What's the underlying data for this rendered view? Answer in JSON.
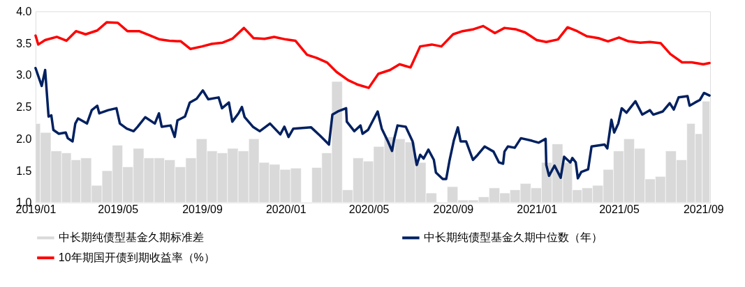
{
  "chart_data": {
    "type": "line",
    "xlim": [
      "2019-01-01",
      "2021-09-11"
    ],
    "xticks": [
      {
        "value": "2019-01-01",
        "label": "2019/01"
      },
      {
        "value": "2019-05-01",
        "label": "2019/05"
      },
      {
        "value": "2019-09-01",
        "label": "2019/09"
      },
      {
        "value": "2020-01-01",
        "label": "2020/01"
      },
      {
        "value": "2020-05-01",
        "label": "2020/05"
      },
      {
        "value": "2020-09-01",
        "label": "2020/09"
      },
      {
        "value": "2021-01-01",
        "label": "2021/01"
      },
      {
        "value": "2021-05-01",
        "label": "2021/05"
      },
      {
        "value": "2021-09-01",
        "label": "2021/09"
      }
    ],
    "ylim": [
      1.0,
      4.0
    ],
    "yticks": [
      {
        "value": 1.0,
        "label": "1.0"
      },
      {
        "value": 1.5,
        "label": "1.5"
      },
      {
        "value": 2.0,
        "label": "2.0"
      },
      {
        "value": 2.5,
        "label": "2.5"
      },
      {
        "value": 3.0,
        "label": "3.0"
      },
      {
        "value": 3.5,
        "label": "3.5"
      },
      {
        "value": 4.0,
        "label": "4.0"
      }
    ],
    "grid": false,
    "legend": "bottom",
    "series": [
      {
        "name": "中长期纯债型基金久期标准差",
        "type": "bar",
        "color": "#d9d9d9",
        "x": [
          "2019-01-01",
          "2019-01-15",
          "2019-02-01",
          "2019-02-15",
          "2019-03-01",
          "2019-03-15",
          "2019-04-01",
          "2019-04-15",
          "2019-05-01",
          "2019-05-15",
          "2019-06-01",
          "2019-06-15",
          "2019-07-01",
          "2019-07-15",
          "2019-08-01",
          "2019-08-15",
          "2019-09-01",
          "2019-09-15",
          "2019-10-01",
          "2019-10-15",
          "2019-11-01",
          "2019-11-15",
          "2019-12-01",
          "2019-12-15",
          "2020-01-01",
          "2020-01-15",
          "2020-02-01",
          "2020-02-15",
          "2020-03-01",
          "2020-03-15",
          "2020-04-01",
          "2020-04-15",
          "2020-05-01",
          "2020-05-15",
          "2020-06-01",
          "2020-06-15",
          "2020-07-01",
          "2020-07-15",
          "2020-08-01",
          "2020-08-15",
          "2020-09-01",
          "2020-09-15",
          "2020-10-01",
          "2020-10-15",
          "2020-11-01",
          "2020-11-15",
          "2020-12-01",
          "2020-12-15",
          "2021-01-01",
          "2021-01-15",
          "2021-02-01",
          "2021-02-15",
          "2021-03-01",
          "2021-03-15",
          "2021-04-01",
          "2021-04-15",
          "2021-05-01",
          "2021-05-15",
          "2021-06-01",
          "2021-06-15",
          "2021-07-01",
          "2021-07-15",
          "2021-08-01",
          "2021-08-15",
          "2021-08-25",
          "2021-09-05"
        ],
        "values": [
          2.24,
          2.1,
          1.81,
          1.78,
          1.67,
          1.7,
          1.27,
          1.5,
          1.9,
          1.56,
          1.85,
          1.7,
          1.7,
          1.67,
          1.56,
          1.7,
          2.0,
          1.81,
          1.78,
          1.85,
          1.81,
          2.0,
          1.63,
          1.6,
          1.52,
          1.54,
          null,
          1.55,
          1.78,
          2.9,
          1.2,
          1.7,
          1.65,
          1.88,
          2.03,
          2.0,
          1.95,
          1.63,
          1.15,
          null,
          1.25,
          1.04,
          1.04,
          1.09,
          1.23,
          1.15,
          1.2,
          1.3,
          1.23,
          1.63,
          1.92,
          1.63,
          1.2,
          1.23,
          1.27,
          1.52,
          1.81,
          2.0,
          1.85,
          1.37,
          1.41,
          1.81,
          1.67,
          2.24,
          2.08,
          2.59
        ]
      },
      {
        "name": "中长期纯债型基金久期中位数（年）",
        "color": "#002060",
        "x": [
          "2019-01-01",
          "2019-01-10",
          "2019-01-15",
          "2019-01-20",
          "2019-01-24",
          "2019-01-27",
          "2019-02-04",
          "2019-02-14",
          "2019-02-17",
          "2019-02-24",
          "2019-02-28",
          "2019-03-04",
          "2019-03-17",
          "2019-03-24",
          "2019-04-01",
          "2019-04-04",
          "2019-04-17",
          "2019-04-29",
          "2019-05-04",
          "2019-05-14",
          "2019-05-24",
          "2019-05-30",
          "2019-06-10",
          "2019-06-24",
          "2019-06-30",
          "2019-07-04",
          "2019-07-17",
          "2019-07-23",
          "2019-07-27",
          "2019-08-07",
          "2019-08-14",
          "2019-08-24",
          "2019-09-02",
          "2019-09-10",
          "2019-09-25",
          "2019-09-30",
          "2019-10-10",
          "2019-10-15",
          "2019-10-24",
          "2019-10-29",
          "2019-11-02",
          "2019-11-14",
          "2019-11-24",
          "2019-12-09",
          "2019-12-24",
          "2019-12-30",
          "2020-01-05",
          "2020-01-12",
          "2020-02-07",
          "2020-02-20",
          "2020-03-04",
          "2020-03-09",
          "2020-03-17",
          "2020-03-29",
          "2020-03-30",
          "2020-04-10",
          "2020-04-19",
          "2020-04-22",
          "2020-04-30",
          "2020-05-14",
          "2020-05-20",
          "2020-05-29",
          "2020-06-04",
          "2020-06-07",
          "2020-06-12",
          "2020-06-24",
          "2020-07-04",
          "2020-07-10",
          "2020-07-15",
          "2020-07-20",
          "2020-07-27",
          "2020-08-04",
          "2020-08-07",
          "2020-08-17",
          "2020-08-22",
          "2020-08-27",
          "2020-09-02",
          "2020-09-08",
          "2020-09-12",
          "2020-09-20",
          "2020-09-30",
          "2020-10-07",
          "2020-10-17",
          "2020-10-30",
          "2020-11-07",
          "2020-11-13",
          "2020-11-15",
          "2020-11-20",
          "2020-11-30",
          "2020-12-09",
          "2020-12-25",
          "2021-01-04",
          "2021-01-14",
          "2021-01-15",
          "2021-01-19",
          "2021-01-27",
          "2021-02-05",
          "2021-02-10",
          "2021-02-19",
          "2021-02-22",
          "2021-02-27",
          "2021-03-02",
          "2021-03-07",
          "2021-03-17",
          "2021-03-22",
          "2021-04-10",
          "2021-04-14",
          "2021-04-20",
          "2021-04-24",
          "2021-04-30",
          "2021-05-05",
          "2021-05-12",
          "2021-05-17",
          "2021-05-25",
          "2021-06-04",
          "2021-06-15",
          "2021-06-20",
          "2021-07-04",
          "2021-07-14",
          "2021-07-20",
          "2021-07-27",
          "2021-08-09",
          "2021-08-12",
          "2021-08-20",
          "2021-08-27",
          "2021-09-02",
          "2021-09-10"
        ],
        "values": [
          3.11,
          2.83,
          3.08,
          2.35,
          2.37,
          2.14,
          2.08,
          2.1,
          2.01,
          1.96,
          2.24,
          2.32,
          2.24,
          2.45,
          2.52,
          2.4,
          2.45,
          2.48,
          2.24,
          2.16,
          2.12,
          2.19,
          2.34,
          2.24,
          2.4,
          2.19,
          2.21,
          2.03,
          2.29,
          2.35,
          2.57,
          2.63,
          2.76,
          2.62,
          2.65,
          2.48,
          2.57,
          2.27,
          2.4,
          2.5,
          2.34,
          2.19,
          2.12,
          2.24,
          2.07,
          2.19,
          2.03,
          2.16,
          2.18,
          2.05,
          1.91,
          2.38,
          2.43,
          2.48,
          2.27,
          2.12,
          2.21,
          2.08,
          2.14,
          2.43,
          2.16,
          1.96,
          1.81,
          1.99,
          2.21,
          2.19,
          1.96,
          1.59,
          1.75,
          1.69,
          1.83,
          1.67,
          1.47,
          1.37,
          1.37,
          1.67,
          1.97,
          2.18,
          1.96,
          1.96,
          1.67,
          1.75,
          1.88,
          1.8,
          1.63,
          1.61,
          1.8,
          1.88,
          1.86,
          2.01,
          1.97,
          1.94,
          2.0,
          1.59,
          1.42,
          1.58,
          1.39,
          1.72,
          1.63,
          1.7,
          1.63,
          1.38,
          1.48,
          1.52,
          1.88,
          1.91,
          1.85,
          2.3,
          2.1,
          2.24,
          2.48,
          2.41,
          2.48,
          2.59,
          2.38,
          2.45,
          2.38,
          2.43,
          2.56,
          2.46,
          2.65,
          2.67,
          2.52,
          2.57,
          2.61,
          2.72,
          2.68
        ]
      },
      {
        "name": "10年期国开债到期收益率（%）",
        "color": "#ff0000",
        "x": [
          "2019-01-01",
          "2019-01-05",
          "2019-01-15",
          "2019-02-01",
          "2019-02-15",
          "2019-03-01",
          "2019-03-15",
          "2019-04-01",
          "2019-04-15",
          "2019-05-01",
          "2019-05-15",
          "2019-06-01",
          "2019-06-15",
          "2019-07-01",
          "2019-07-15",
          "2019-08-01",
          "2019-08-15",
          "2019-09-01",
          "2019-09-15",
          "2019-10-01",
          "2019-10-15",
          "2019-11-01",
          "2019-11-15",
          "2019-12-01",
          "2019-12-15",
          "2020-01-01",
          "2020-01-15",
          "2020-02-01",
          "2020-02-15",
          "2020-03-01",
          "2020-03-15",
          "2020-04-01",
          "2020-04-15",
          "2020-05-01",
          "2020-05-15",
          "2020-06-01",
          "2020-06-15",
          "2020-07-01",
          "2020-07-15",
          "2020-08-01",
          "2020-08-15",
          "2020-09-01",
          "2020-09-15",
          "2020-10-01",
          "2020-10-15",
          "2020-11-01",
          "2020-11-15",
          "2020-12-01",
          "2020-12-15",
          "2021-01-01",
          "2021-01-15",
          "2021-02-01",
          "2021-02-15",
          "2021-03-01",
          "2021-03-15",
          "2021-04-01",
          "2021-04-15",
          "2021-05-01",
          "2021-05-15",
          "2021-06-01",
          "2021-06-15",
          "2021-07-01",
          "2021-07-15",
          "2021-08-01",
          "2021-08-15",
          "2021-09-01",
          "2021-09-10"
        ],
        "values": [
          3.62,
          3.48,
          3.55,
          3.6,
          3.54,
          3.69,
          3.64,
          3.7,
          3.83,
          3.82,
          3.69,
          3.69,
          3.63,
          3.56,
          3.54,
          3.53,
          3.41,
          3.45,
          3.49,
          3.51,
          3.57,
          3.74,
          3.58,
          3.57,
          3.6,
          3.56,
          3.54,
          3.32,
          3.27,
          3.2,
          3.05,
          2.92,
          2.85,
          2.8,
          3.02,
          3.08,
          3.17,
          3.12,
          3.45,
          3.48,
          3.45,
          3.64,
          3.69,
          3.72,
          3.77,
          3.66,
          3.74,
          3.72,
          3.67,
          3.55,
          3.52,
          3.56,
          3.75,
          3.69,
          3.61,
          3.58,
          3.53,
          3.59,
          3.53,
          3.51,
          3.52,
          3.5,
          3.33,
          3.2,
          3.2,
          3.17,
          3.19
        ]
      }
    ]
  }
}
